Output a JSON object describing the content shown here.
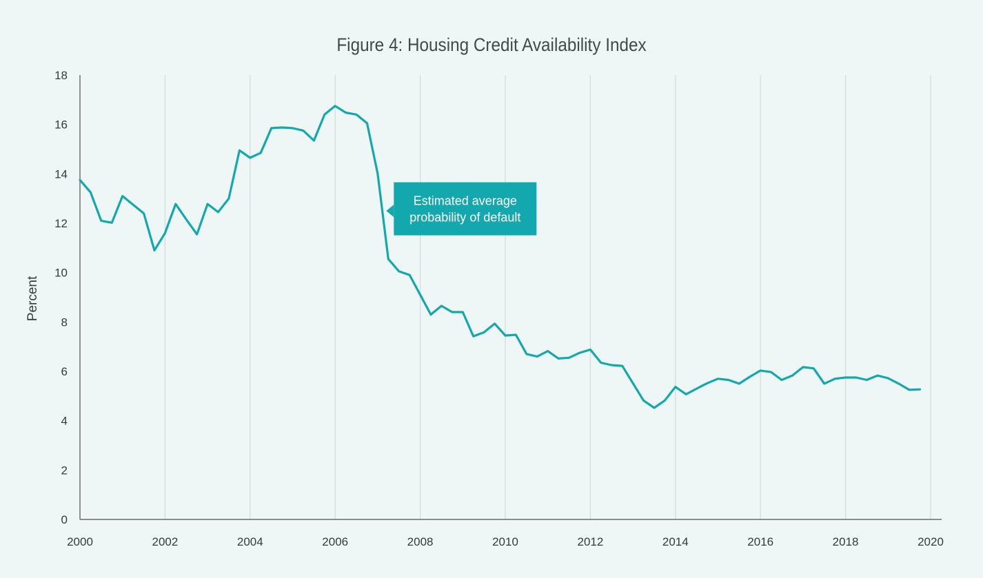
{
  "chart_data": {
    "type": "line",
    "title": "Figure 4: Housing Credit Availability Index",
    "xlabel": "",
    "ylabel": "Percent",
    "xlim": [
      2000,
      2020
    ],
    "ylim": [
      0,
      18
    ],
    "x_ticks": [
      "2000",
      "2002",
      "2004",
      "2006",
      "2008",
      "2010",
      "2012",
      "2014",
      "2016",
      "2018",
      "2020"
    ],
    "y_ticks": [
      "0",
      "2",
      "4",
      "6",
      "8",
      "10",
      "12",
      "14",
      "16",
      "18"
    ],
    "grid": "vertical",
    "line_color": "#13a8ae",
    "annotation": {
      "lines": [
        "Estimated average",
        "probability of default"
      ],
      "x": 2007.25,
      "y": 12.5,
      "color": "#13a8ae"
    },
    "series": [
      {
        "x": [
          2000.0,
          2000.25,
          2000.5,
          2000.75,
          2001.0,
          2001.25,
          2001.5,
          2001.75,
          2002.0,
          2002.25,
          2002.5,
          2002.75,
          2003.0,
          2003.25,
          2003.5,
          2003.75,
          2004.0,
          2004.25,
          2004.5,
          2004.75,
          2005.0,
          2005.25,
          2005.5,
          2005.75,
          2006.0,
          2006.25,
          2006.5,
          2006.75,
          2007.0,
          2007.25,
          2007.5,
          2007.75,
          2008.0,
          2008.25,
          2008.5,
          2008.75,
          2009.0,
          2009.25,
          2009.5,
          2009.75,
          2010.0,
          2010.25,
          2010.5,
          2010.75,
          2011.0,
          2011.25,
          2011.5,
          2011.75,
          2012.0,
          2012.25,
          2012.5,
          2012.75,
          2013.0,
          2013.25,
          2013.5,
          2013.75,
          2014.0,
          2014.25,
          2014.5,
          2014.75,
          2015.0,
          2015.25,
          2015.5,
          2015.75,
          2016.0,
          2016.25,
          2016.5,
          2016.75,
          2017.0,
          2017.25,
          2017.5,
          2017.75,
          2018.0,
          2018.25,
          2018.5,
          2018.75,
          2019.0,
          2019.25,
          2019.5,
          2019.75
        ],
        "values": [
          13.75,
          13.25,
          12.1,
          12.02,
          13.1,
          12.75,
          12.4,
          10.9,
          11.6,
          12.78,
          12.15,
          11.55,
          12.78,
          12.45,
          13.0,
          14.95,
          14.65,
          14.85,
          15.85,
          15.88,
          15.85,
          15.75,
          15.35,
          16.4,
          16.75,
          16.48,
          16.4,
          16.05,
          14.0,
          10.55,
          10.05,
          9.9,
          9.1,
          8.3,
          8.65,
          8.4,
          8.4,
          7.42,
          7.58,
          7.93,
          7.45,
          7.48,
          6.7,
          6.6,
          6.82,
          6.52,
          6.55,
          6.75,
          6.88,
          6.35,
          6.25,
          6.22,
          5.52,
          4.82,
          4.52,
          4.82,
          5.37,
          5.07,
          5.3,
          5.52,
          5.7,
          5.65,
          5.5,
          5.78,
          6.03,
          5.97,
          5.65,
          5.83,
          6.17,
          6.12,
          5.5,
          5.7,
          5.75,
          5.75,
          5.65,
          5.83,
          5.72,
          5.5,
          5.25,
          5.27
        ]
      }
    ]
  }
}
